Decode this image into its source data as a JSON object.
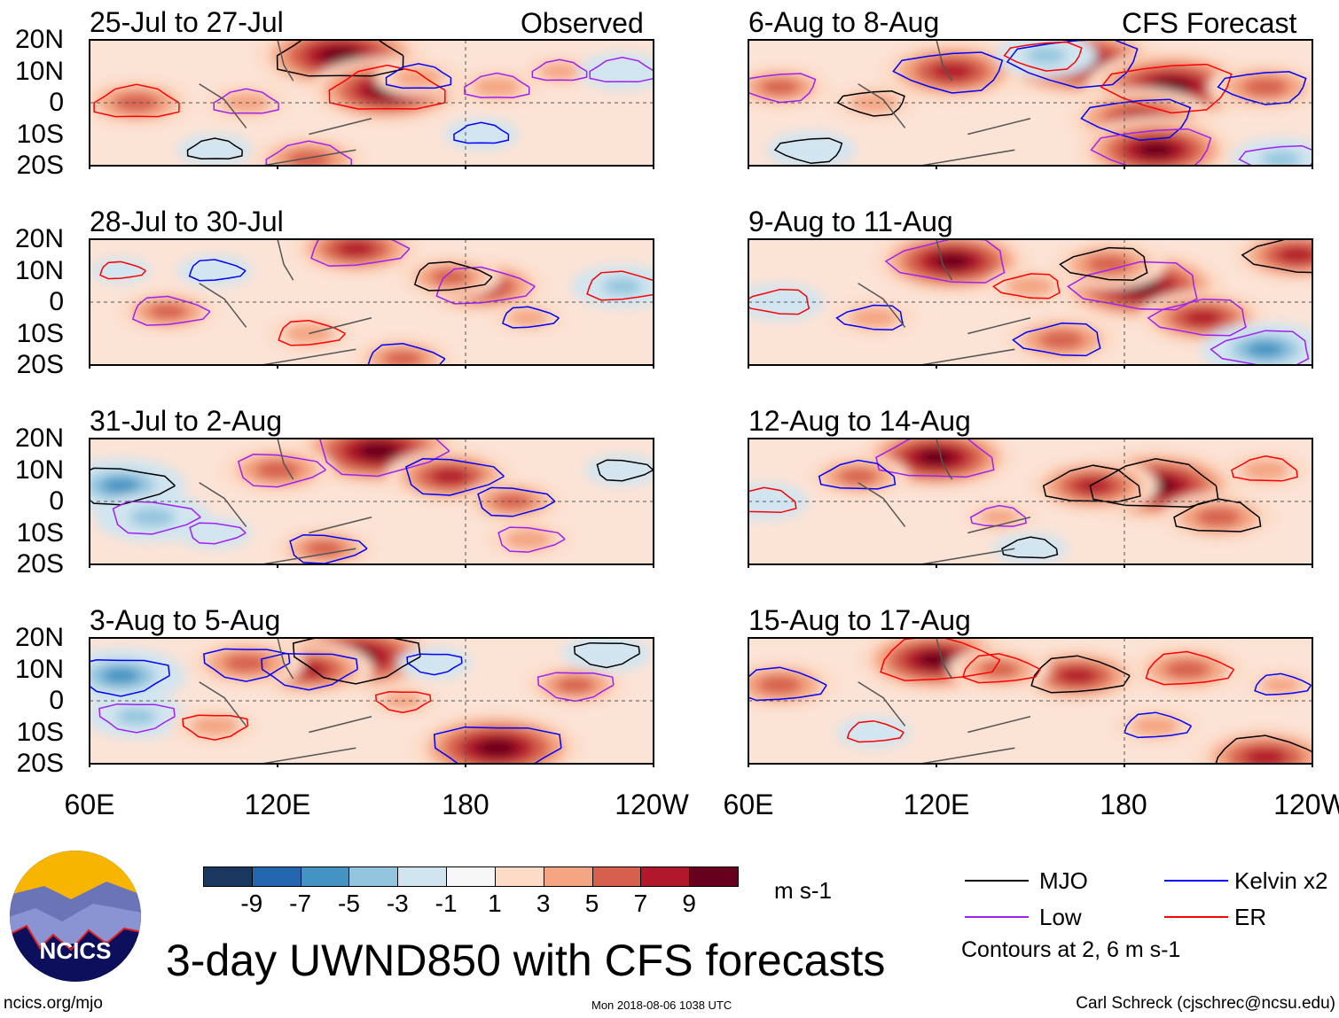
{
  "header": {
    "observed_label": "Observed",
    "forecast_label": "CFS Forecast"
  },
  "lat_labels": [
    "20N",
    "10N",
    "0",
    "10S",
    "20S"
  ],
  "lon_labels": [
    "60E",
    "120E",
    "180",
    "120W"
  ],
  "chart_data": {
    "type": "heatmap",
    "title": "3-day UWND850 with CFS forecasts",
    "units": "m s-1",
    "lon_range": [
      60,
      240
    ],
    "lat_range": [
      -20,
      20
    ],
    "panels": [
      {
        "title": "25-Jul to 27-Jul",
        "group": "Observed",
        "blobs": [
          [
            140,
            15,
            9
          ],
          [
            155,
            4,
            8
          ],
          [
            165,
            8,
            3
          ],
          [
            190,
            5,
            3
          ],
          [
            75,
            0,
            5
          ],
          [
            130,
            -18,
            5
          ],
          [
            210,
            10,
            2
          ],
          [
            110,
            0,
            3
          ],
          [
            185,
            -10,
            -2
          ],
          [
            230,
            10,
            -3
          ],
          [
            100,
            -15,
            -2
          ]
        ]
      },
      {
        "title": "28-Jul to 30-Jul",
        "group": "Observed",
        "blobs": [
          [
            145,
            17,
            6
          ],
          [
            185,
            5,
            6
          ],
          [
            175,
            8,
            4
          ],
          [
            85,
            -3,
            4
          ],
          [
            130,
            -10,
            3
          ],
          [
            200,
            -5,
            2
          ],
          [
            100,
            10,
            -2
          ],
          [
            230,
            5,
            -4
          ],
          [
            160,
            -18,
            4
          ],
          [
            70,
            10,
            -1
          ]
        ]
      },
      {
        "title": "31-Jul to 2-Aug",
        "group": "Observed",
        "blobs": [
          [
            152,
            16,
            9
          ],
          [
            175,
            8,
            6
          ],
          [
            195,
            0,
            4
          ],
          [
            120,
            10,
            5
          ],
          [
            70,
            5,
            -6
          ],
          [
            80,
            -5,
            -5
          ],
          [
            135,
            -15,
            4
          ],
          [
            200,
            -12,
            3
          ],
          [
            230,
            10,
            -2
          ],
          [
            100,
            -10,
            -2
          ]
        ]
      },
      {
        "title": "3-Aug to 5-Aug",
        "group": "Observed",
        "blobs": [
          [
            145,
            14,
            9
          ],
          [
            130,
            10,
            6
          ],
          [
            190,
            -15,
            9
          ],
          [
            215,
            5,
            4
          ],
          [
            70,
            8,
            -6
          ],
          [
            75,
            -5,
            -4
          ],
          [
            100,
            -8,
            3
          ],
          [
            110,
            12,
            5
          ],
          [
            225,
            15,
            -3
          ],
          [
            160,
            0,
            2
          ],
          [
            170,
            12,
            -2
          ]
        ]
      },
      {
        "title": "6-Aug to 8-Aug",
        "group": "CFS Forecast",
        "blobs": [
          [
            165,
            13,
            9
          ],
          [
            125,
            10,
            7
          ],
          [
            195,
            5,
            9
          ],
          [
            185,
            -5,
            7
          ],
          [
            190,
            -15,
            8
          ],
          [
            70,
            5,
            4
          ],
          [
            100,
            0,
            3
          ],
          [
            225,
            5,
            5
          ],
          [
            80,
            -15,
            -3
          ],
          [
            230,
            -18,
            -4
          ],
          [
            155,
            15,
            -4
          ]
        ]
      },
      {
        "title": "9-Aug to 11-Aug",
        "group": "CFS Forecast",
        "blobs": [
          [
            185,
            5,
            9
          ],
          [
            125,
            13,
            8
          ],
          [
            175,
            12,
            5
          ],
          [
            205,
            -5,
            6
          ],
          [
            160,
            -12,
            5
          ],
          [
            100,
            -5,
            3
          ],
          [
            70,
            0,
            -3
          ],
          [
            225,
            -15,
            -6
          ],
          [
            235,
            15,
            6
          ],
          [
            150,
            5,
            3
          ]
        ]
      },
      {
        "title": "12-Aug to 14-Aug",
        "group": "CFS Forecast",
        "blobs": [
          [
            190,
            5,
            9
          ],
          [
            120,
            14,
            8
          ],
          [
            170,
            5,
            6
          ],
          [
            210,
            -5,
            5
          ],
          [
            95,
            8,
            4
          ],
          [
            65,
            0,
            -3
          ],
          [
            150,
            -15,
            -2
          ],
          [
            225,
            10,
            3
          ],
          [
            140,
            -5,
            2
          ]
        ]
      },
      {
        "title": "15-Aug to 17-Aug",
        "group": "CFS Forecast",
        "blobs": [
          [
            120,
            13,
            8
          ],
          [
            165,
            8,
            6
          ],
          [
            200,
            10,
            5
          ],
          [
            225,
            -18,
            7
          ],
          [
            140,
            10,
            4
          ],
          [
            70,
            5,
            5
          ],
          [
            100,
            -10,
            -2
          ],
          [
            190,
            -8,
            3
          ],
          [
            230,
            5,
            2
          ]
        ]
      }
    ],
    "colorbar": {
      "levels": [
        "-9",
        "-7",
        "-5",
        "-3",
        "-1",
        "1",
        "3",
        "5",
        "7",
        "9"
      ],
      "colors": [
        "#1a3760",
        "#2467ae",
        "#4393c3",
        "#92c5de",
        "#d1e5f0",
        "#f7f7f7",
        "#fddbc7",
        "#f4a582",
        "#d6604d",
        "#b2182b",
        "#67001f"
      ]
    },
    "legend": [
      {
        "label": "MJO",
        "color": "#000000"
      },
      {
        "label": "Kelvin x2",
        "color": "#0000ff"
      },
      {
        "label": "Low",
        "color": "#a020f0"
      },
      {
        "label": "ER",
        "color": "#ff0000"
      }
    ],
    "contour_note": "Contours at 2, 6 m s-1"
  },
  "footer": {
    "logo_text": "NCICS",
    "url": "ncics.org/mjo",
    "timestamp": "Mon 2018-08-06 1038 UTC",
    "credit": "Carl Schreck (cjschrec@ncsu.edu)"
  }
}
